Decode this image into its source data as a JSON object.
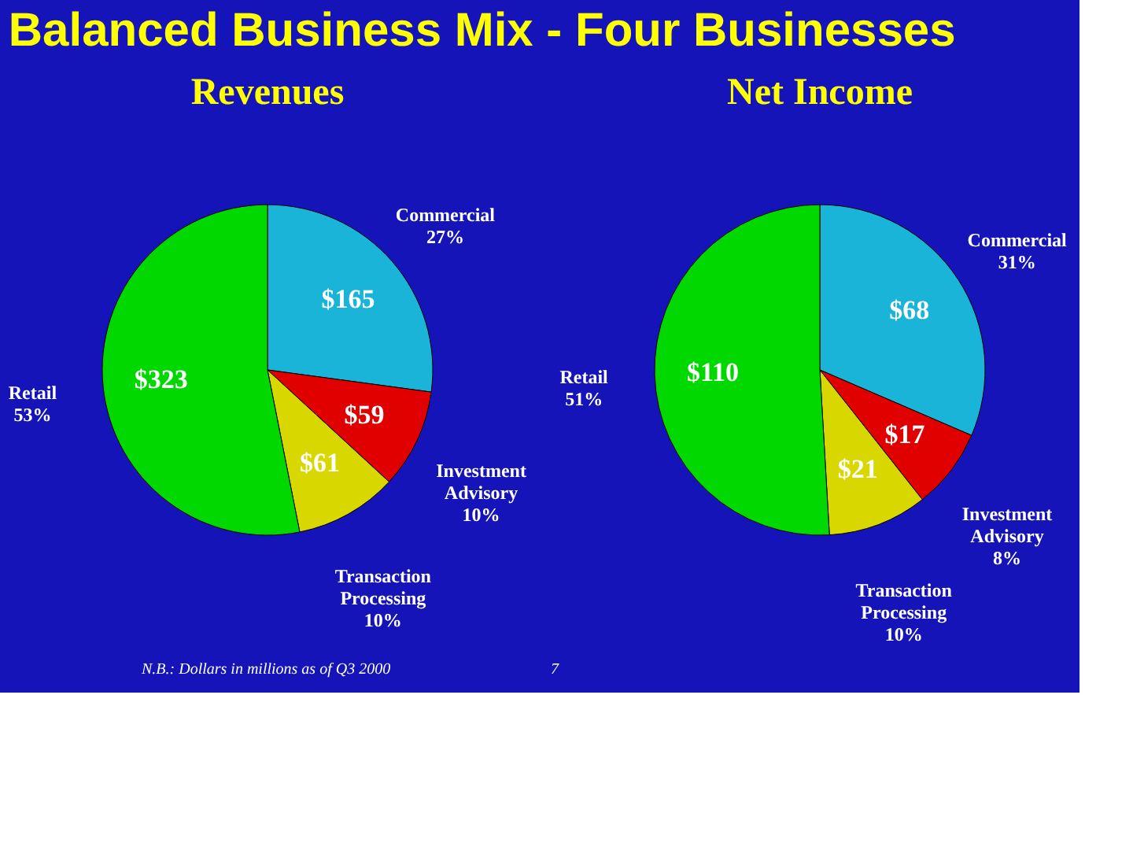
{
  "chart_data": [
    {
      "type": "pie",
      "title": "Revenues",
      "categories": [
        "Commercial\n27%",
        "Investment\nAdvisory\n10%",
        "Transaction\nProcessing\n10%",
        "Retail\n53%"
      ],
      "values": [
        165,
        59,
        61,
        323
      ],
      "value_labels": [
        "$165",
        "$59",
        "$61",
        "$323"
      ],
      "colors": [
        "#1ab4d8",
        "#e00000",
        "#d8d800",
        "#00d800"
      ],
      "legend": false,
      "annotations": [
        "Balanced Business Mix - Four Businesses"
      ]
    },
    {
      "type": "pie",
      "title": "Net Income",
      "categories": [
        "Commercial\n31%",
        "Investment\nAdvisory\n8%",
        "Transaction\nProcessing\n10%",
        "Retail\n51%"
      ],
      "values": [
        68,
        17,
        21,
        110
      ],
      "value_labels": [
        "$68",
        "$17",
        "$21",
        "$110"
      ],
      "colors": [
        "#1ab4d8",
        "#e00000",
        "#d8d800",
        "#00d800"
      ],
      "legend": false,
      "annotations": [
        "N.B.: Dollars in millions as of Q3 2000",
        "7"
      ]
    }
  ]
}
